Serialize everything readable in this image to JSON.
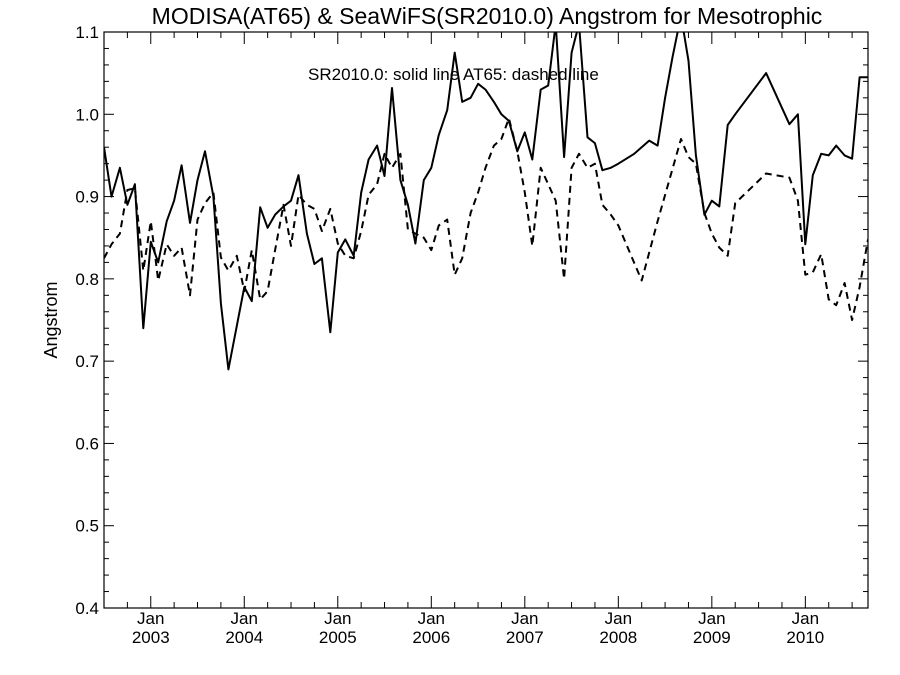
{
  "chart_data": {
    "type": "line",
    "title": "MODISA(AT65) & SeaWiFS(SR2010.0)  Angstrom for Mesotrophic",
    "annotation": "SR2010.0: solid line   AT65: dashed line",
    "ylabel": "Angstrom",
    "xlabel": "",
    "ylim": [
      0.4,
      1.1
    ],
    "xlim": [
      2002.5,
      2010.67
    ],
    "yticks": [
      0.4,
      0.5,
      0.6,
      0.7,
      0.8,
      0.9,
      1.0,
      1.1
    ],
    "ytick_labels": [
      "0.4",
      "0.5",
      "0.6",
      "0.7",
      "0.8",
      "0.9",
      "1.0",
      "1.1"
    ],
    "xticks": [
      2003.0,
      2004.0,
      2005.0,
      2006.0,
      2007.0,
      2008.0,
      2009.0,
      2010.0
    ],
    "xtick_month_labels": [
      "Jan",
      "Jan",
      "Jan",
      "Jan",
      "Jan",
      "Jan",
      "Jan",
      "Jan"
    ],
    "xtick_year_labels": [
      "2003",
      "2004",
      "2005",
      "2006",
      "2007",
      "2008",
      "2009",
      "2010"
    ],
    "grid": false,
    "series": [
      {
        "label": "SR2010.0",
        "style": "solid",
        "color": "#000000",
        "x": [
          2002.5,
          2002.58,
          2002.67,
          2002.75,
          2002.83,
          2002.92,
          2003.0,
          2003.08,
          2003.17,
          2003.25,
          2003.33,
          2003.42,
          2003.5,
          2003.58,
          2003.67,
          2003.75,
          2003.83,
          2004.0,
          2004.08,
          2004.17,
          2004.25,
          2004.33,
          2004.42,
          2004.5,
          2004.58,
          2004.67,
          2004.75,
          2004.83,
          2004.92,
          2005.0,
          2005.08,
          2005.17,
          2005.25,
          2005.33,
          2005.42,
          2005.5,
          2005.58,
          2005.67,
          2005.75,
          2005.83,
          2005.92,
          2006.0,
          2006.08,
          2006.17,
          2006.25,
          2006.33,
          2006.42,
          2006.5,
          2006.58,
          2006.67,
          2006.75,
          2006.83,
          2006.92,
          2007.0,
          2007.08,
          2007.17,
          2007.25,
          2007.33,
          2007.42,
          2007.5,
          2007.58,
          2007.67,
          2007.75,
          2007.83,
          2007.92,
          2008.0,
          2008.17,
          2008.33,
          2008.42,
          2008.5,
          2008.58,
          2008.67,
          2008.75,
          2008.83,
          2008.92,
          2009.0,
          2009.08,
          2009.17,
          2009.25,
          2009.58,
          2009.83,
          2009.92,
          2010.0,
          2010.08,
          2010.17,
          2010.25,
          2010.33,
          2010.42,
          2010.5,
          2010.58,
          2010.67
        ],
        "y": [
          0.96,
          0.9,
          0.935,
          0.89,
          0.915,
          0.74,
          0.845,
          0.82,
          0.87,
          0.895,
          0.938,
          0.868,
          0.92,
          0.955,
          0.9,
          0.77,
          0.69,
          0.79,
          0.773,
          0.887,
          0.862,
          0.878,
          0.888,
          0.895,
          0.926,
          0.855,
          0.818,
          0.825,
          0.735,
          0.832,
          0.848,
          0.828,
          0.905,
          0.945,
          0.962,
          0.925,
          1.032,
          0.92,
          0.89,
          0.843,
          0.92,
          0.935,
          0.975,
          1.005,
          1.075,
          1.015,
          1.02,
          1.037,
          1.03,
          1.015,
          1.0,
          0.992,
          0.955,
          0.978,
          0.945,
          1.03,
          1.035,
          1.11,
          0.948,
          1.075,
          1.11,
          0.972,
          0.965,
          0.932,
          0.935,
          0.94,
          0.952,
          0.968,
          0.962,
          1.02,
          1.07,
          1.12,
          1.065,
          0.95,
          0.878,
          0.895,
          0.888,
          0.987,
          1.0,
          1.05,
          0.988,
          1.0,
          0.842,
          0.926,
          0.952,
          0.95,
          0.962,
          0.95,
          0.946,
          1.045,
          1.045
        ]
      },
      {
        "label": "AT65",
        "style": "dashed",
        "color": "#000000",
        "x": [
          2002.5,
          2002.58,
          2002.67,
          2002.75,
          2002.83,
          2002.92,
          2003.0,
          2003.08,
          2003.17,
          2003.25,
          2003.33,
          2003.42,
          2003.5,
          2003.58,
          2003.67,
          2003.75,
          2003.83,
          2003.92,
          2004.0,
          2004.08,
          2004.17,
          2004.25,
          2004.33,
          2004.42,
          2004.5,
          2004.58,
          2004.67,
          2004.75,
          2004.83,
          2004.92,
          2005.0,
          2005.08,
          2005.17,
          2005.25,
          2005.33,
          2005.42,
          2005.5,
          2005.58,
          2005.67,
          2005.75,
          2005.83,
          2005.92,
          2006.0,
          2006.08,
          2006.17,
          2006.25,
          2006.33,
          2006.42,
          2006.5,
          2006.58,
          2006.67,
          2006.75,
          2006.83,
          2006.92,
          2007.0,
          2007.08,
          2007.17,
          2007.25,
          2007.33,
          2007.42,
          2007.5,
          2007.58,
          2007.67,
          2007.75,
          2007.83,
          2007.92,
          2008.0,
          2008.25,
          2008.42,
          2008.67,
          2008.75,
          2008.83,
          2008.92,
          2009.0,
          2009.08,
          2009.17,
          2009.25,
          2009.58,
          2009.83,
          2009.92,
          2010.0,
          2010.08,
          2010.17,
          2010.25,
          2010.33,
          2010.42,
          2010.5,
          2010.58,
          2010.67
        ],
        "y": [
          0.825,
          0.842,
          0.855,
          0.908,
          0.91,
          0.81,
          0.87,
          0.798,
          0.842,
          0.828,
          0.838,
          0.78,
          0.872,
          0.892,
          0.905,
          0.826,
          0.81,
          0.828,
          0.785,
          0.835,
          0.775,
          0.785,
          0.835,
          0.89,
          0.84,
          0.902,
          0.89,
          0.885,
          0.858,
          0.885,
          0.843,
          0.828,
          0.825,
          0.858,
          0.902,
          0.915,
          0.952,
          0.935,
          0.952,
          0.86,
          0.855,
          0.85,
          0.835,
          0.865,
          0.872,
          0.805,
          0.825,
          0.88,
          0.905,
          0.935,
          0.962,
          0.97,
          0.995,
          0.955,
          0.905,
          0.84,
          0.935,
          0.915,
          0.895,
          0.8,
          0.935,
          0.952,
          0.935,
          0.94,
          0.89,
          0.878,
          0.865,
          0.798,
          0.87,
          0.97,
          0.948,
          0.94,
          0.88,
          0.855,
          0.838,
          0.828,
          0.892,
          0.928,
          0.923,
          0.895,
          0.805,
          0.808,
          0.83,
          0.775,
          0.768,
          0.795,
          0.75,
          0.79,
          0.848
        ]
      }
    ]
  }
}
